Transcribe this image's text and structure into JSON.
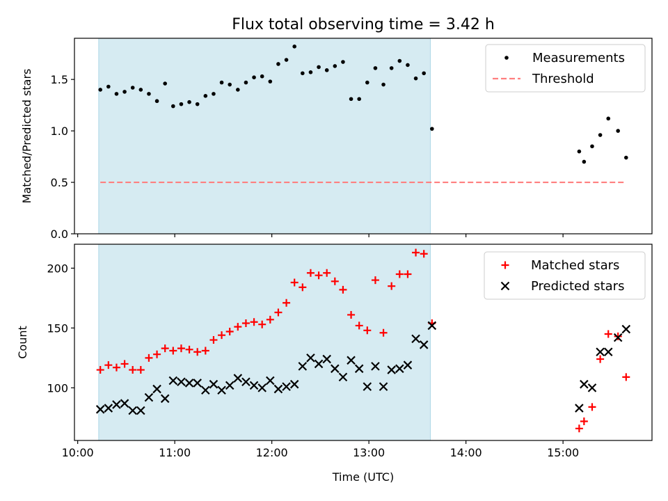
{
  "chart_data": [
    {
      "type": "scatter",
      "title": "Flux total observing time = 3.42 h",
      "xlabel": "",
      "ylabel": "Matched/Predicted stars",
      "xlim": [
        "09:58",
        "15:55"
      ],
      "ylim": [
        0,
        1.9
      ],
      "yticks": [
        0.0,
        0.5,
        1.0,
        1.5
      ],
      "ytick_labels": [
        "0.0",
        "0.5",
        "1.0",
        "1.5"
      ],
      "xtick_labels": [],
      "shaded_interval": {
        "start": "10:13",
        "end": "13:38",
        "color": "#add8e6"
      },
      "legend_position": "top-right",
      "series": [
        {
          "name": "Measurements",
          "marker": "dot",
          "color": "#000000",
          "points": [
            [
              "10:14",
              1.4
            ],
            [
              "10:19",
              1.43
            ],
            [
              "10:24",
              1.36
            ],
            [
              "10:29",
              1.38
            ],
            [
              "10:34",
              1.42
            ],
            [
              "10:39",
              1.4
            ],
            [
              "10:44",
              1.36
            ],
            [
              "10:49",
              1.29
            ],
            [
              "10:54",
              1.46
            ],
            [
              "10:59",
              1.24
            ],
            [
              "11:04",
              1.26
            ],
            [
              "11:09",
              1.28
            ],
            [
              "11:14",
              1.26
            ],
            [
              "11:19",
              1.34
            ],
            [
              "11:24",
              1.36
            ],
            [
              "11:29",
              1.47
            ],
            [
              "11:34",
              1.45
            ],
            [
              "11:39",
              1.4
            ],
            [
              "11:44",
              1.47
            ],
            [
              "11:49",
              1.52
            ],
            [
              "11:54",
              1.53
            ],
            [
              "11:59",
              1.48
            ],
            [
              "12:04",
              1.65
            ],
            [
              "12:09",
              1.69
            ],
            [
              "12:14",
              1.82
            ],
            [
              "12:19",
              1.56
            ],
            [
              "12:24",
              1.57
            ],
            [
              "12:29",
              1.62
            ],
            [
              "12:34",
              1.59
            ],
            [
              "12:39",
              1.63
            ],
            [
              "12:44",
              1.67
            ],
            [
              "12:49",
              1.31
            ],
            [
              "12:54",
              1.31
            ],
            [
              "12:59",
              1.47
            ],
            [
              "13:04",
              1.61
            ],
            [
              "13:09",
              1.45
            ],
            [
              "13:14",
              1.61
            ],
            [
              "13:19",
              1.68
            ],
            [
              "13:24",
              1.64
            ],
            [
              "13:29",
              1.51
            ],
            [
              "13:34",
              1.56
            ],
            [
              "13:39",
              1.02
            ],
            [
              "15:10",
              0.8
            ],
            [
              "15:13",
              0.7
            ],
            [
              "15:18",
              0.85
            ],
            [
              "15:23",
              0.96
            ],
            [
              "15:28",
              1.12
            ],
            [
              "15:34",
              1.0
            ],
            [
              "15:39",
              0.74
            ]
          ]
        },
        {
          "name": "Threshold",
          "marker": "dashed-line",
          "color": "#ff7f7f",
          "points": [
            [
              "10:14",
              0.5
            ],
            [
              "15:39",
              0.5
            ]
          ]
        }
      ]
    },
    {
      "type": "scatter",
      "title": "",
      "xlabel": "Time (UTC)",
      "ylabel": "Count",
      "xlim": [
        "09:58",
        "15:55"
      ],
      "ylim": [
        56,
        220
      ],
      "yticks": [
        100,
        150,
        200
      ],
      "ytick_labels": [
        "100",
        "150",
        "200"
      ],
      "xticks": [
        "10:00",
        "11:00",
        "12:00",
        "13:00",
        "14:00",
        "15:00"
      ],
      "xtick_labels": [
        "10:00",
        "11:00",
        "12:00",
        "13:00",
        "14:00",
        "15:00"
      ],
      "shaded_interval": {
        "start": "10:13",
        "end": "13:38",
        "color": "#add8e6"
      },
      "legend_position": "top-right",
      "series": [
        {
          "name": "Matched stars",
          "marker": "plus",
          "color": "#ff0000",
          "points": [
            [
              "10:14",
              115
            ],
            [
              "10:19",
              119
            ],
            [
              "10:24",
              117
            ],
            [
              "10:29",
              120
            ],
            [
              "10:34",
              115
            ],
            [
              "10:39",
              115
            ],
            [
              "10:44",
              125
            ],
            [
              "10:49",
              128
            ],
            [
              "10:54",
              133
            ],
            [
              "10:59",
              131
            ],
            [
              "11:04",
              133
            ],
            [
              "11:09",
              132
            ],
            [
              "11:14",
              130
            ],
            [
              "11:19",
              131
            ],
            [
              "11:24",
              140
            ],
            [
              "11:29",
              144
            ],
            [
              "11:34",
              147
            ],
            [
              "11:39",
              151
            ],
            [
              "11:44",
              154
            ],
            [
              "11:49",
              155
            ],
            [
              "11:54",
              153
            ],
            [
              "11:59",
              157
            ],
            [
              "12:04",
              163
            ],
            [
              "12:09",
              171
            ],
            [
              "12:14",
              188
            ],
            [
              "12:19",
              184
            ],
            [
              "12:24",
              196
            ],
            [
              "12:29",
              194
            ],
            [
              "12:34",
              196
            ],
            [
              "12:39",
              189
            ],
            [
              "12:44",
              182
            ],
            [
              "12:49",
              161
            ],
            [
              "12:54",
              152
            ],
            [
              "12:59",
              148
            ],
            [
              "13:04",
              190
            ],
            [
              "13:09",
              146
            ],
            [
              "13:14",
              185
            ],
            [
              "13:19",
              195
            ],
            [
              "13:24",
              195
            ],
            [
              "13:29",
              213
            ],
            [
              "13:34",
              212
            ],
            [
              "13:39",
              154
            ],
            [
              "15:10",
              66
            ],
            [
              "15:13",
              72
            ],
            [
              "15:18",
              84
            ],
            [
              "15:23",
              124
            ],
            [
              "15:28",
              145
            ],
            [
              "15:34",
              143
            ],
            [
              "15:39",
              109
            ]
          ]
        },
        {
          "name": "Predicted stars",
          "marker": "x",
          "color": "#000000",
          "points": [
            [
              "10:14",
              82
            ],
            [
              "10:19",
              83
            ],
            [
              "10:24",
              86
            ],
            [
              "10:29",
              87
            ],
            [
              "10:34",
              81
            ],
            [
              "10:39",
              81
            ],
            [
              "10:44",
              92
            ],
            [
              "10:49",
              99
            ],
            [
              "10:54",
              91
            ],
            [
              "10:59",
              106
            ],
            [
              "11:04",
              105
            ],
            [
              "11:09",
              104
            ],
            [
              "11:14",
              104
            ],
            [
              "11:19",
              98
            ],
            [
              "11:24",
              103
            ],
            [
              "11:29",
              98
            ],
            [
              "11:34",
              102
            ],
            [
              "11:39",
              108
            ],
            [
              "11:44",
              105
            ],
            [
              "11:49",
              102
            ],
            [
              "11:54",
              100
            ],
            [
              "11:59",
              106
            ],
            [
              "12:04",
              99
            ],
            [
              "12:09",
              101
            ],
            [
              "12:14",
              103
            ],
            [
              "12:19",
              118
            ],
            [
              "12:24",
              125
            ],
            [
              "12:29",
              120
            ],
            [
              "12:34",
              124
            ],
            [
              "12:39",
              116
            ],
            [
              "12:44",
              109
            ],
            [
              "12:49",
              123
            ],
            [
              "12:54",
              116
            ],
            [
              "12:59",
              101
            ],
            [
              "13:04",
              118
            ],
            [
              "13:09",
              101
            ],
            [
              "13:14",
              115
            ],
            [
              "13:19",
              116
            ],
            [
              "13:24",
              119
            ],
            [
              "13:29",
              141
            ],
            [
              "13:34",
              136
            ],
            [
              "13:39",
              152
            ],
            [
              "15:10",
              83
            ],
            [
              "15:13",
              103
            ],
            [
              "15:18",
              100
            ],
            [
              "15:23",
              130
            ],
            [
              "15:28",
              130
            ],
            [
              "15:34",
              142
            ],
            [
              "15:39",
              149
            ]
          ]
        }
      ]
    }
  ]
}
